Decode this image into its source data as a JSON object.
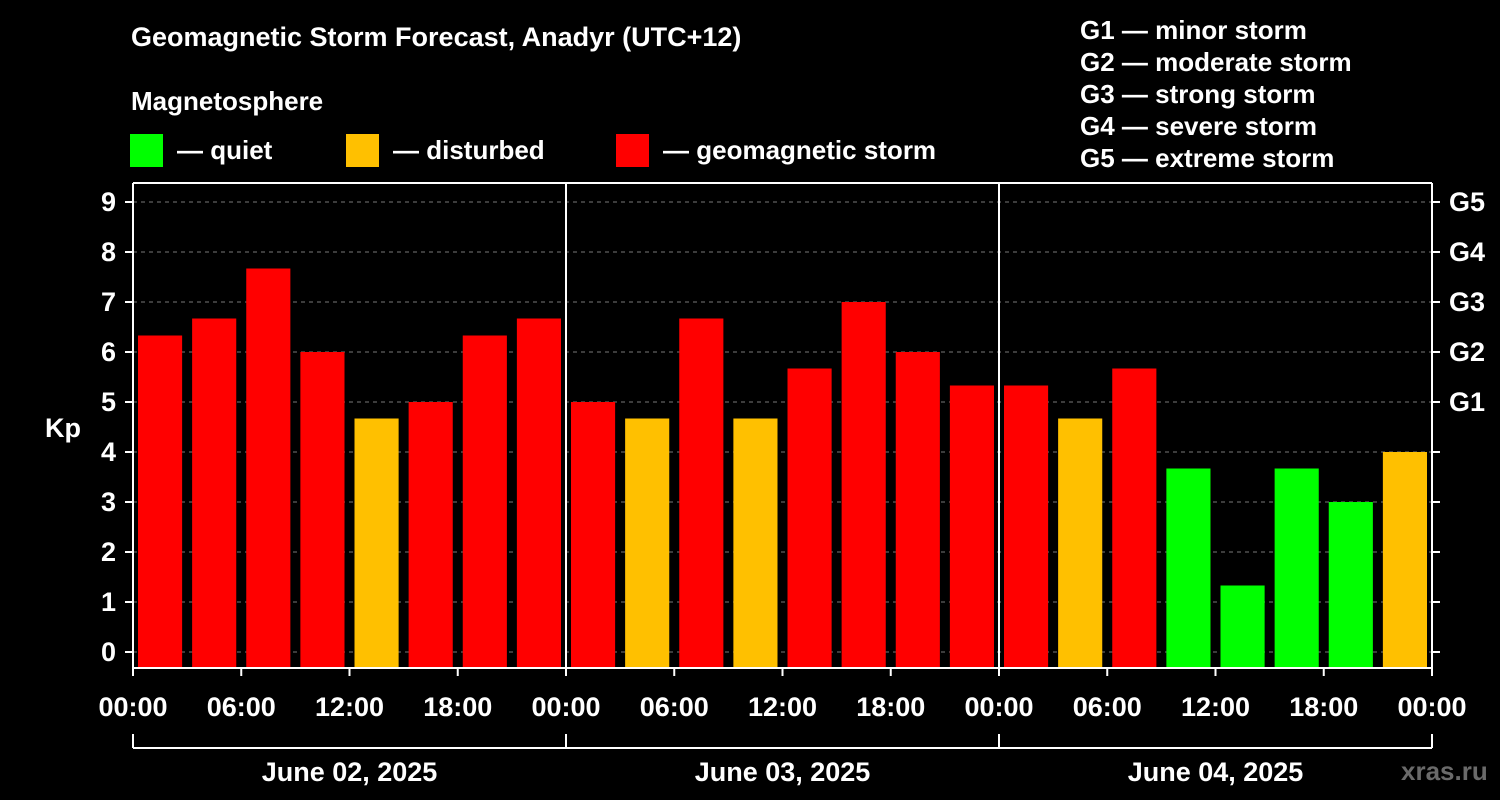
{
  "title": "Geomagnetic Storm Forecast, Anadyr (UTC+12)",
  "subtitle": "Magnetosphere",
  "legend": [
    {
      "label": "— quiet",
      "color": "#00ff00"
    },
    {
      "label": "— disturbed",
      "color": "#ffc000"
    },
    {
      "label": "— geomagnetic storm",
      "color": "#ff0000"
    }
  ],
  "g_levels": [
    "G1 — minor storm",
    "G2 — moderate storm",
    "G3 — strong storm",
    "G4 — severe storm",
    "G5 — extreme storm"
  ],
  "watermark": "xras.ru",
  "chart_data": {
    "type": "bar",
    "ylabel": "Kp",
    "ylim": [
      0,
      9
    ],
    "y_ticks": [
      "0",
      "1",
      "2",
      "3",
      "4",
      "5",
      "6",
      "7",
      "8",
      "9"
    ],
    "right_ticks": [
      {
        "kp": 5,
        "label": "G1"
      },
      {
        "kp": 6,
        "label": "G2"
      },
      {
        "kp": 7,
        "label": "G3"
      },
      {
        "kp": 8,
        "label": "G4"
      },
      {
        "kp": 9,
        "label": "G5"
      }
    ],
    "x_tick_labels": [
      "00:00",
      "06:00",
      "12:00",
      "18:00",
      "00:00",
      "06:00",
      "12:00",
      "18:00",
      "00:00",
      "06:00",
      "12:00",
      "18:00",
      "00:00"
    ],
    "days": [
      "June 02, 2025",
      "June 03, 2025",
      "June 04, 2025"
    ],
    "values": [
      6.33,
      6.67,
      7.67,
      6.0,
      4.67,
      5.0,
      6.33,
      6.67,
      5.0,
      4.67,
      6.67,
      4.67,
      5.67,
      7.0,
      6.0,
      5.33,
      5.33,
      4.67,
      5.67,
      3.67,
      1.33,
      3.67,
      3.0,
      4.0
    ],
    "colors": {
      "quiet": "#00ff00",
      "disturbed": "#ffc000",
      "storm": "#ff0000"
    },
    "grid": true
  }
}
